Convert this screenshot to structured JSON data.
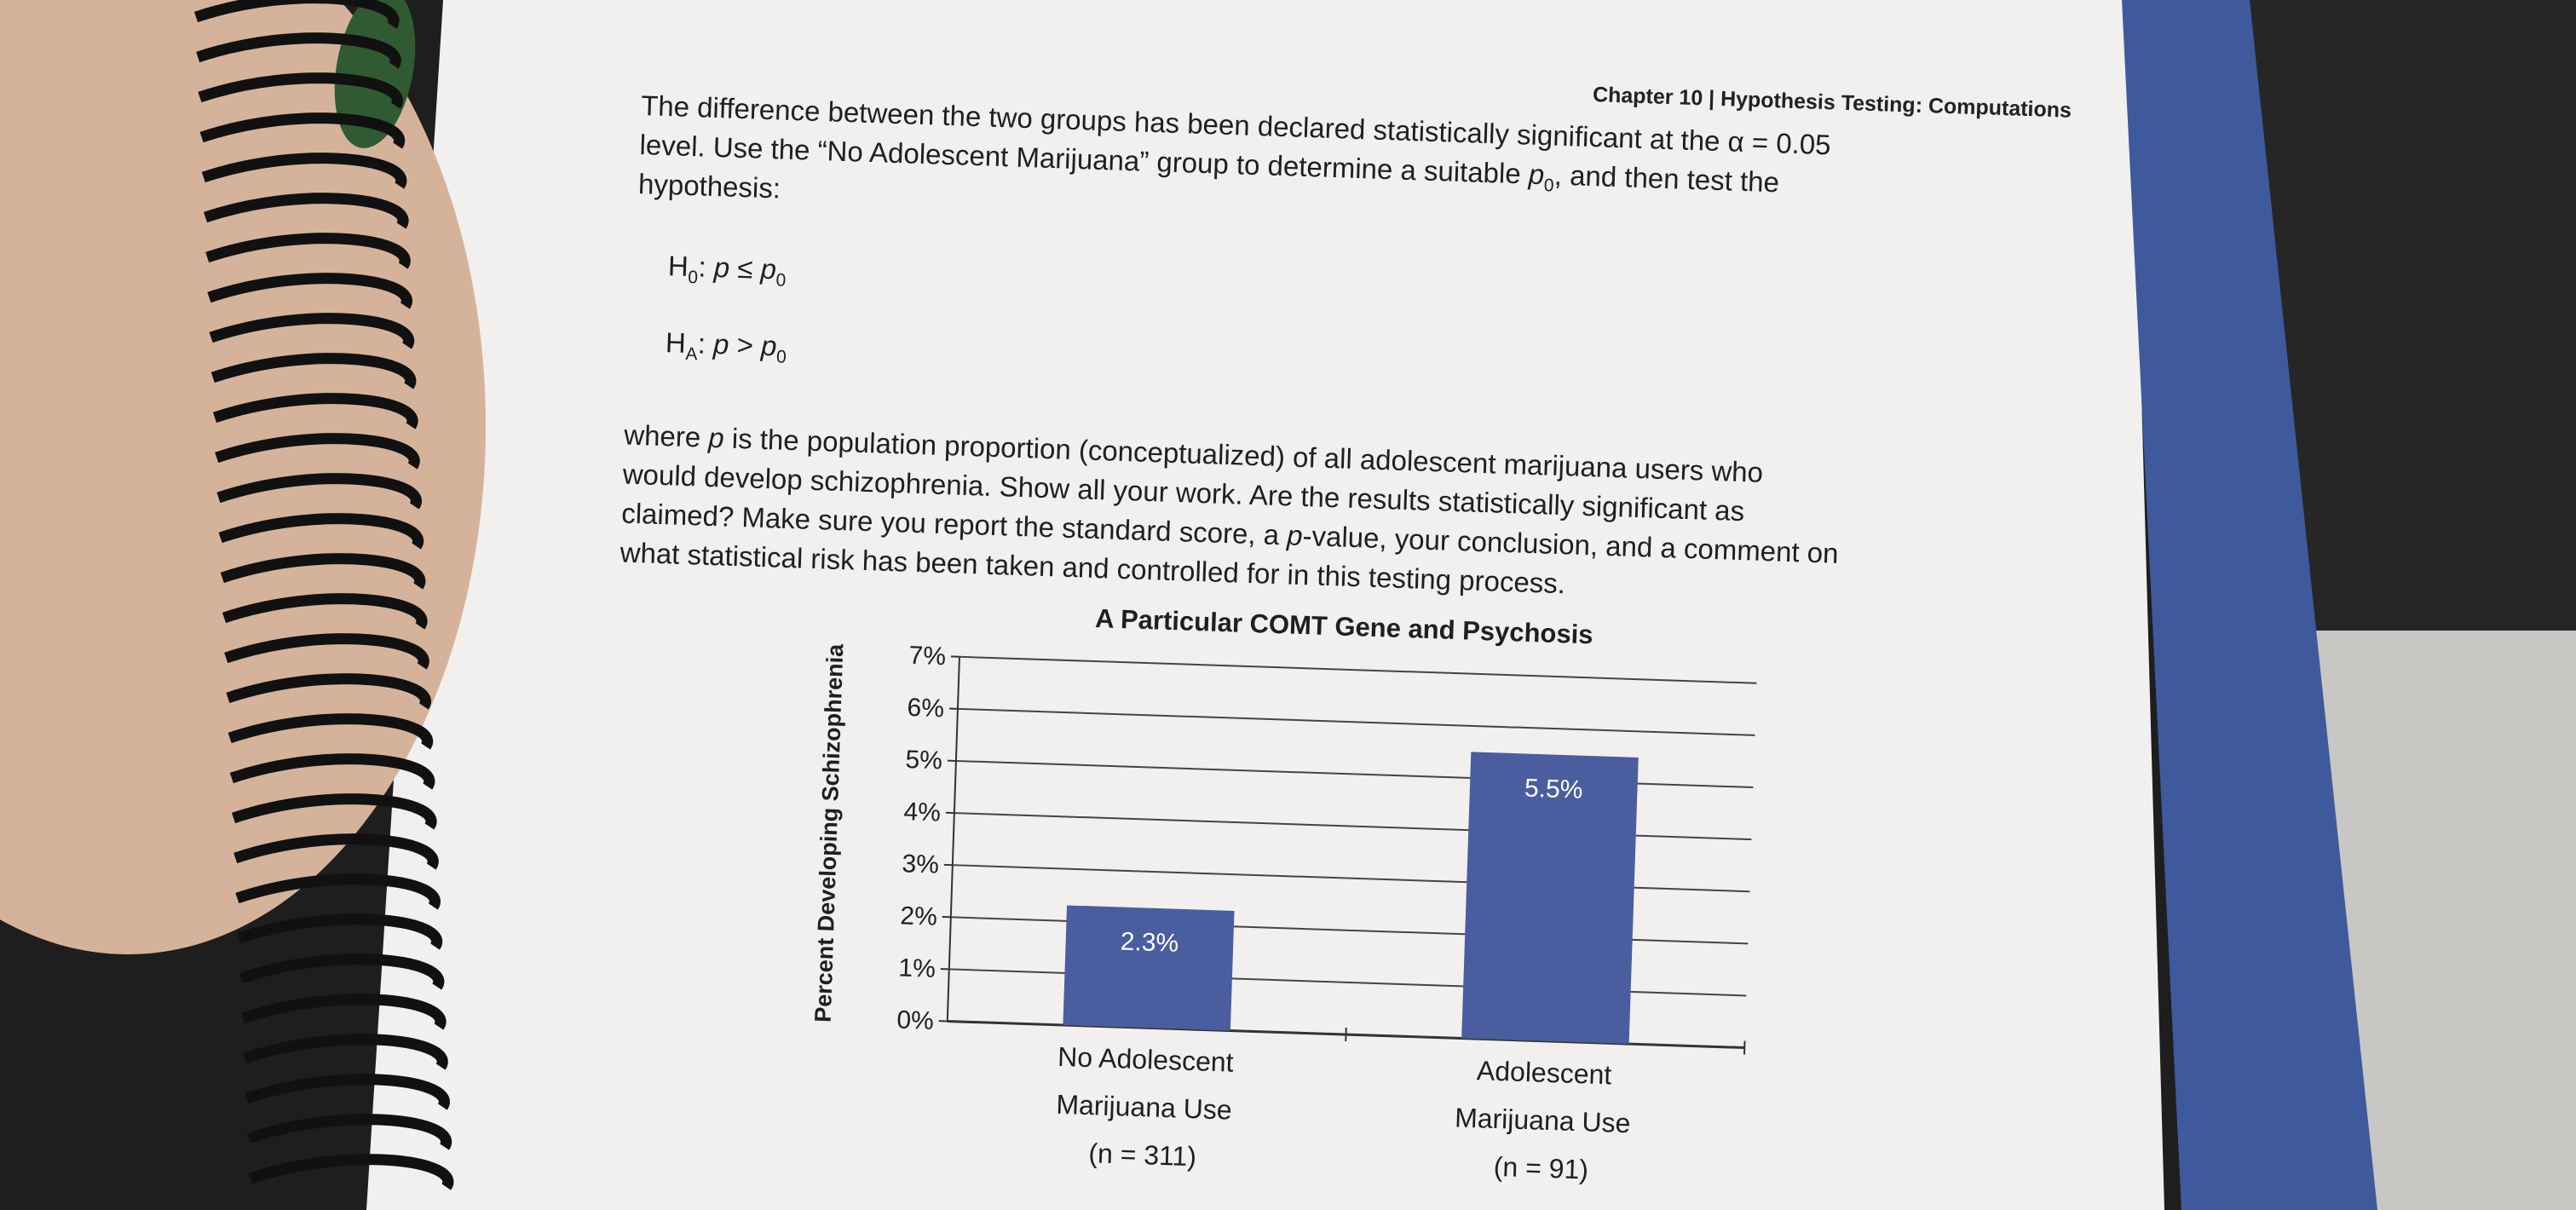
{
  "header": {
    "title": "Chapter 10 | Hypothesis Testing: Computations"
  },
  "intro": {
    "lines": [
      [
        "The difference between the two groups has been declared statistically significant at the α = 0.05"
      ],
      [
        "level. Use the “No Adolescent Marijuana” group to determine a suitable ",
        "p",
        "0",
        ", and then test the"
      ],
      [
        "hypothesis:"
      ]
    ]
  },
  "hypotheses": {
    "null": [
      "H",
      "0",
      ": ",
      "p",
      " ≤ ",
      "p",
      "0"
    ],
    "alternative": [
      "H",
      "A",
      ": ",
      "p",
      " > ",
      "p",
      "0"
    ]
  },
  "body": {
    "lines": [
      [
        "where ",
        "p",
        " is the population proportion (conceptualized) of all adolescent marijuana users who"
      ],
      [
        "would develop schizophrenia. Show all your work. Are the results statistically significant as"
      ],
      [
        "claimed? Make sure you report the standard score, a ",
        "p",
        "-value, your conclusion, and a comment on"
      ],
      [
        "what statistical risk has been taken and controlled for in this testing process."
      ]
    ]
  },
  "chart_data": {
    "type": "bar",
    "title": "A Particular COMT Gene and Psychosis",
    "y_label": "Percent Developing Schizophrenia",
    "categories": [
      [
        "No Adolescent",
        "Marijuana Use",
        "(n = 311)"
      ],
      [
        "Adolescent",
        "Marijuana Use",
        "(n = 91)"
      ]
    ],
    "values": [
      2.3,
      5.5
    ],
    "value_labels": [
      "2.3%",
      "5.5%"
    ],
    "color": "#4a5d9e",
    "ylim": [
      0,
      7
    ],
    "yticks": [
      {
        "value": 0,
        "label": "0%"
      },
      {
        "value": 1,
        "label": "1%"
      },
      {
        "value": 2,
        "label": "2%"
      },
      {
        "value": 3,
        "label": "3%"
      },
      {
        "value": 4,
        "label": "4%"
      },
      {
        "value": 5,
        "label": "5%"
      },
      {
        "value": 6,
        "label": "6%"
      },
      {
        "value": 7,
        "label": "7%"
      }
    ],
    "grid": true
  }
}
